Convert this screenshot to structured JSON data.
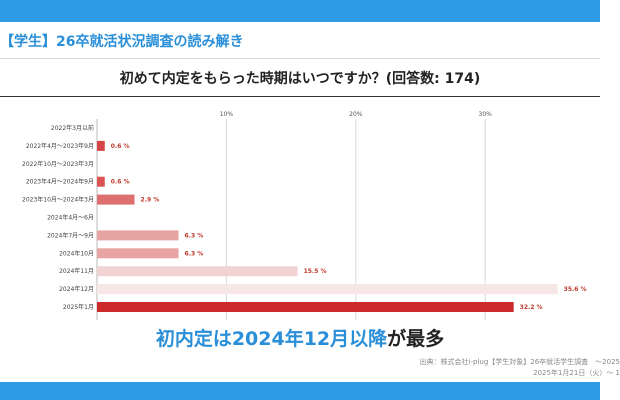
{
  "header": {
    "title": "【学生】26卒就活状況調査の読み解き"
  },
  "chart_data": {
    "type": "bar",
    "orientation": "horizontal",
    "title": "初めて内定をもらった時期はいつですか？(回答数: 174)",
    "categories": [
      "2022年3月以前",
      "2022年4月～2023年9月",
      "2022年10月～2023年3月",
      "2023年4月～2024年9月",
      "2023年10月～2024年3月",
      "2024年4月～6月",
      "2024年7月～9月",
      "2024年10月",
      "2024年11月",
      "2024年12月",
      "2025年1月"
    ],
    "values": [
      0,
      0.6,
      0,
      0.6,
      2.9,
      0,
      6.3,
      6.3,
      15.5,
      35.6,
      32.2
    ],
    "value_labels": [
      "",
      "0.6 %",
      "",
      "0.6 %",
      "2.9 %",
      "",
      "6.3 %",
      "6.3 %",
      "15.5 %",
      "35.6 %",
      "32.2 %"
    ],
    "xticks": [
      10,
      20,
      30
    ],
    "xtick_labels": [
      "10%",
      "20%",
      "30%"
    ],
    "xlim": [
      0,
      40
    ],
    "grid": true,
    "colors": [
      "#ffffff",
      "#d64545",
      "#ffffff",
      "#da5454",
      "#dd6f6f",
      "#ffffff",
      "#e8a3a3",
      "#e8a3a3",
      "#f2d3d3",
      "#f6e6e6",
      "#cc2b2b"
    ]
  },
  "conclusion": {
    "part1": "初内定は2024年12月以降",
    "part2": "が最多"
  },
  "source": {
    "line1": "出典：株式会社i-plug【学生対象】26卒就活学生調査　～2025",
    "line2": "2025年1月21日（火）～ 1"
  }
}
